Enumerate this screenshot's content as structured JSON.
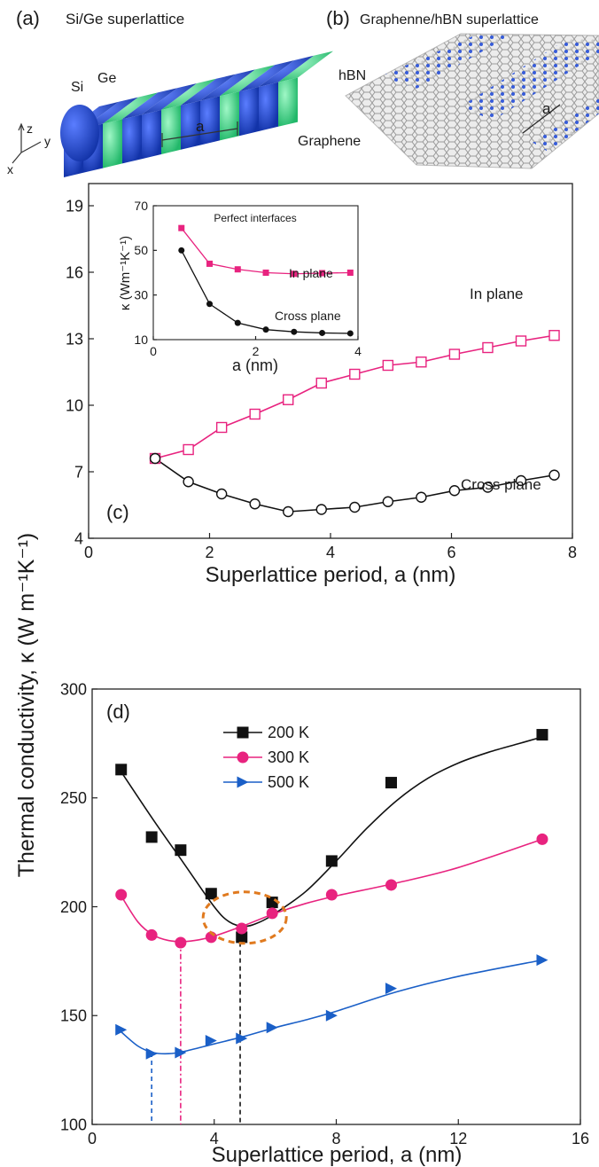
{
  "panels": {
    "a": {
      "tag": "(a)",
      "title": "Si/Ge superlattice",
      "labels": [
        "Si",
        "Ge",
        "a"
      ],
      "axes": [
        "z",
        "y",
        "x"
      ]
    },
    "b": {
      "tag": "(b)",
      "title": "Graphenne/hBN superlattice",
      "labels": [
        "hBN",
        "Graphene",
        "a"
      ]
    }
  },
  "colors": {
    "pink": "#e8237f",
    "black": "#111111",
    "blue": "#1a5fc7",
    "orange": "#e07a1f",
    "si_blue": "#1f49d6",
    "ge_green": "#3fe08a",
    "graphene_gray": "#b9b9b9",
    "hbn_blue": "#2e55d9"
  },
  "chart_data": [
    {
      "id": "c",
      "type": "line",
      "panel_label": "(c)",
      "xlabel": "Superlattice period, a (nm)",
      "ylabel": "Thermal conductivity, κ (W m⁻¹K⁻¹)",
      "xlim": [
        0,
        8
      ],
      "ylim": [
        4,
        20
      ],
      "xticks": [
        0,
        2,
        4,
        6,
        8
      ],
      "yticks": [
        4,
        7,
        10,
        13,
        16,
        19
      ],
      "series": [
        {
          "name": "In plane",
          "marker": "open-square",
          "color": "#e8237f",
          "x": [
            1.1,
            1.65,
            2.2,
            2.75,
            3.3,
            3.85,
            4.4,
            4.95,
            5.5,
            6.05,
            6.6,
            7.15,
            7.7
          ],
          "y": [
            7.6,
            8.0,
            9.0,
            9.6,
            10.25,
            11.0,
            11.4,
            11.8,
            11.95,
            12.3,
            12.6,
            12.9,
            13.15
          ]
        },
        {
          "name": "Cross plane",
          "marker": "open-circle",
          "color": "#111111",
          "x": [
            1.1,
            1.65,
            2.2,
            2.75,
            3.3,
            3.85,
            4.4,
            4.95,
            5.5,
            6.05,
            6.6,
            7.15,
            7.7
          ],
          "y": [
            7.6,
            6.55,
            6.0,
            5.55,
            5.2,
            5.3,
            5.4,
            5.65,
            5.85,
            6.15,
            6.3,
            6.6,
            6.85
          ]
        }
      ],
      "inset": {
        "title": "Perfect interfaces",
        "xlabel": "a (nm)",
        "ylabel": "κ (Wm⁻¹K⁻¹)",
        "xlim": [
          0,
          4
        ],
        "ylim": [
          10,
          70
        ],
        "xticks": [
          0,
          2,
          4
        ],
        "yticks": [
          10,
          30,
          50,
          70
        ],
        "series": [
          {
            "name": "In plane",
            "marker": "filled-square",
            "color": "#e8237f",
            "x": [
              0.55,
              1.1,
              1.65,
              2.2,
              2.75,
              3.3,
              3.85
            ],
            "y": [
              60,
              44,
              41.5,
              40,
              39.5,
              39.8,
              40
            ]
          },
          {
            "name": "Cross plane",
            "marker": "filled-circle",
            "color": "#111111",
            "x": [
              0.55,
              1.1,
              1.65,
              2.2,
              2.75,
              3.3,
              3.85
            ],
            "y": [
              50,
              26,
              17.5,
              14.5,
              13.5,
              13,
              12.8
            ]
          }
        ]
      }
    },
    {
      "id": "d",
      "type": "scatter",
      "panel_label": "(d)",
      "xlabel": "Superlattice period, a (nm)",
      "xlim": [
        0,
        16
      ],
      "ylim": [
        100,
        300
      ],
      "xticks": [
        0,
        4,
        8,
        12,
        16
      ],
      "yticks": [
        100,
        150,
        200,
        250,
        300
      ],
      "legend": "top-left",
      "series": [
        {
          "name": "200 K",
          "marker": "filled-square",
          "color": "#111111",
          "x": [
            0.95,
            1.95,
            2.9,
            3.9,
            4.9,
            5.9,
            7.85,
            9.8,
            14.75
          ],
          "y": [
            263,
            232,
            226,
            206,
            186,
            202,
            221,
            257,
            279
          ],
          "fit_x": [
            0.95,
            2,
            3,
            4,
            4.5,
            5,
            5.5,
            6,
            7,
            8,
            9,
            10,
            11,
            12,
            13,
            14,
            14.75
          ],
          "fit_y": [
            262,
            240,
            220,
            200,
            193,
            191,
            193,
            197,
            207,
            221,
            236,
            249,
            259,
            266,
            271,
            275,
            278
          ]
        },
        {
          "name": "300 K",
          "marker": "filled-circle",
          "color": "#e8237f",
          "x": [
            0.95,
            1.95,
            2.9,
            3.9,
            4.9,
            5.9,
            7.85,
            9.8,
            14.75
          ],
          "y": [
            205.5,
            187,
            183.5,
            186,
            190,
            197,
            205.5,
            210,
            231
          ],
          "fit_x": [
            0.95,
            1.5,
            2,
            2.5,
            3,
            3.5,
            4,
            5,
            6,
            7,
            8,
            10,
            12,
            14.75
          ],
          "fit_y": [
            205,
            193,
            187,
            184.5,
            184,
            184.8,
            186.5,
            191.5,
            197,
            201.5,
            205,
            211,
            218,
            231
          ]
        },
        {
          "name": "500 K",
          "marker": "filled-triangle-right",
          "color": "#1a5fc7",
          "x": [
            0.95,
            1.95,
            2.9,
            3.9,
            4.9,
            5.9,
            7.85,
            9.8,
            14.75
          ],
          "y": [
            143.5,
            132.5,
            133,
            138.5,
            139.5,
            144.5,
            150,
            162.5,
            175.5
          ],
          "fit_x": [
            0.95,
            1.5,
            2,
            2.5,
            3,
            4,
            5,
            6,
            7,
            8,
            10,
            12,
            14.75
          ],
          "fit_y": [
            142.5,
            136,
            133,
            132.5,
            133.5,
            137,
            140.5,
            144.5,
            148,
            152,
            161,
            168,
            175.5
          ]
        }
      ],
      "minima": [
        {
          "series": "200 K",
          "x": 4.85,
          "y": 191,
          "color": "#111111"
        },
        {
          "series": "300 K",
          "x": 2.9,
          "y": 184,
          "color": "#e8237f"
        },
        {
          "series": "500 K",
          "x": 1.95,
          "y": 133,
          "color": "#1a5fc7"
        }
      ],
      "highlight": {
        "x": 5.0,
        "y": 195,
        "color": "#e07a1f"
      }
    }
  ]
}
